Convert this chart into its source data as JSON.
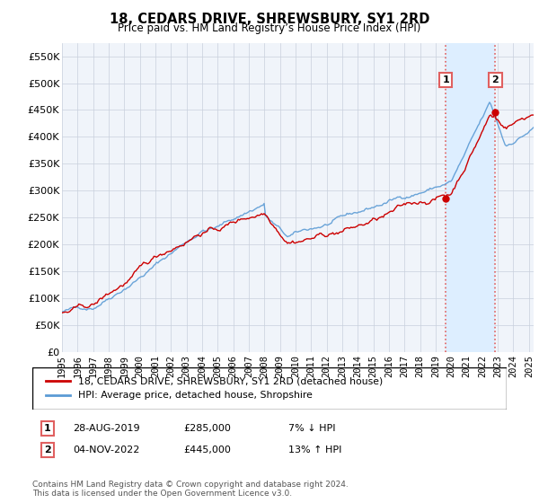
{
  "title": "18, CEDARS DRIVE, SHREWSBURY, SY1 2RD",
  "subtitle": "Price paid vs. HM Land Registry’s House Price Index (HPI)",
  "ylim": [
    0,
    575000
  ],
  "yticks": [
    0,
    50000,
    100000,
    150000,
    200000,
    250000,
    300000,
    350000,
    400000,
    450000,
    500000,
    550000
  ],
  "hpi_color": "#5b9bd5",
  "price_color": "#cc0000",
  "marker1_x": 2019.65,
  "marker1_y": 285000,
  "marker2_x": 2022.84,
  "marker2_y": 445000,
  "highlight_color": "#ddeeff",
  "dashed_color": "#e06060",
  "plot_bg_color": "#f0f4fa",
  "legend_label1": "18, CEDARS DRIVE, SHREWSBURY, SY1 2RD (detached house)",
  "legend_label2": "HPI: Average price, detached house, Shropshire",
  "note1_date": "28-AUG-2019",
  "note1_price": "£285,000",
  "note1_hpi": "7% ↓ HPI",
  "note2_date": "04-NOV-2022",
  "note2_price": "£445,000",
  "note2_hpi": "13% ↑ HPI",
  "footer": "Contains HM Land Registry data © Crown copyright and database right 2024.\nThis data is licensed under the Open Government Licence v3.0.",
  "xmin": 1995.0,
  "xmax": 2025.3
}
